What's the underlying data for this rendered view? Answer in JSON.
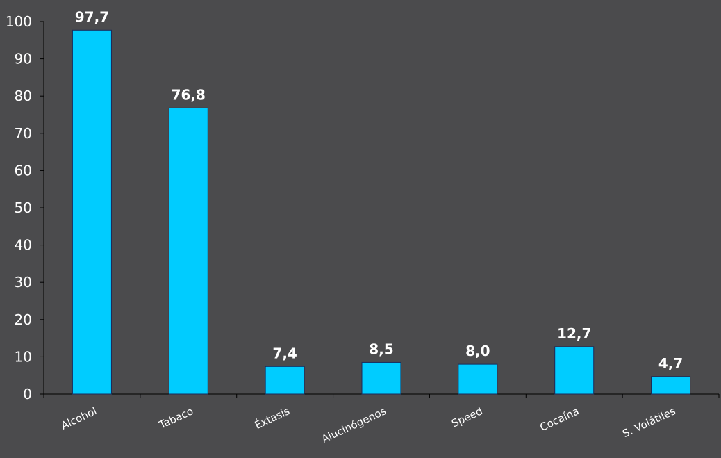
{
  "chart_data": {
    "type": "bar",
    "categories": [
      "Alcohol",
      "Tabaco",
      "Éxtasis",
      "Alucinógenos",
      "Speed",
      "Cocaína",
      "S. Volátiles"
    ],
    "values": [
      97.7,
      76.8,
      7.4,
      8.5,
      8.0,
      12.7,
      4.7
    ],
    "data_labels": [
      "97,7",
      "76,8",
      "7,4",
      "8,5",
      "8,0",
      "12,7",
      "4,7"
    ],
    "ylim": [
      0,
      100
    ],
    "yticks": [
      0,
      10,
      20,
      30,
      40,
      50,
      60,
      70,
      80,
      90,
      100
    ],
    "title": "",
    "xlabel": "",
    "ylabel": "",
    "grid": false,
    "legend": "none",
    "colors": {
      "bar_fill": "#00ccff",
      "bar_stroke": "#1a2a5a",
      "axis": "#000000",
      "background": "#4b4b4d",
      "text": "#ffffff"
    }
  }
}
